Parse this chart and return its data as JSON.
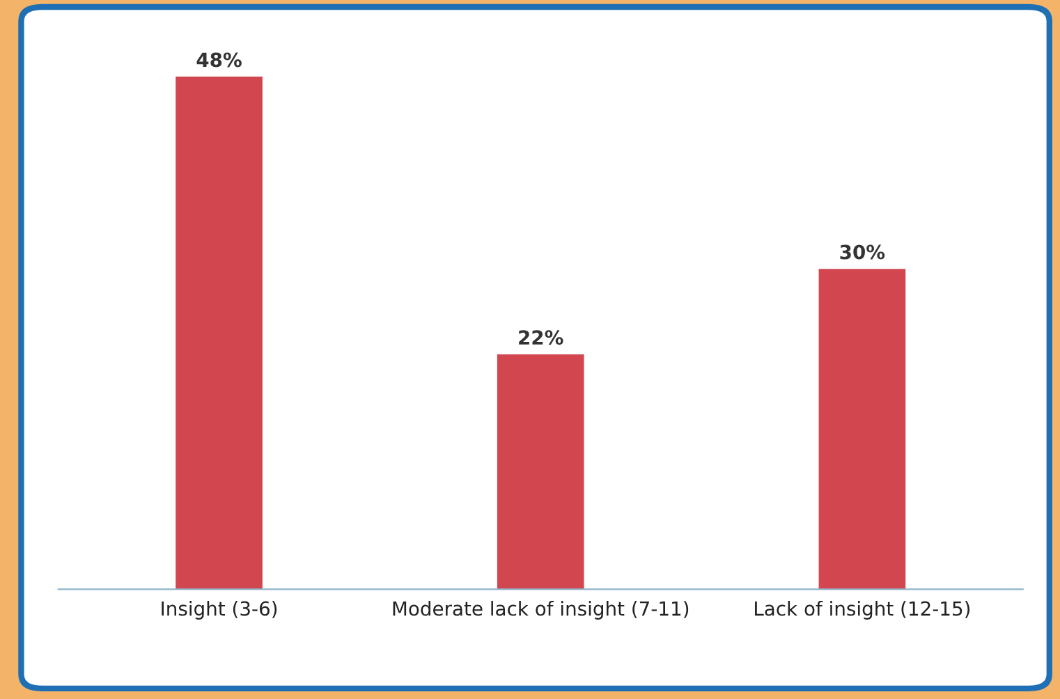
{
  "chart_data": {
    "type": "bar",
    "categories": [
      "Insight (3-6)",
      "Moderate lack of insight (7-11)",
      "Lack of insight (12-15)"
    ],
    "values": [
      48,
      22,
      30
    ],
    "value_labels": [
      "48%",
      "22%",
      "30%"
    ],
    "color": "#d2474f"
  }
}
